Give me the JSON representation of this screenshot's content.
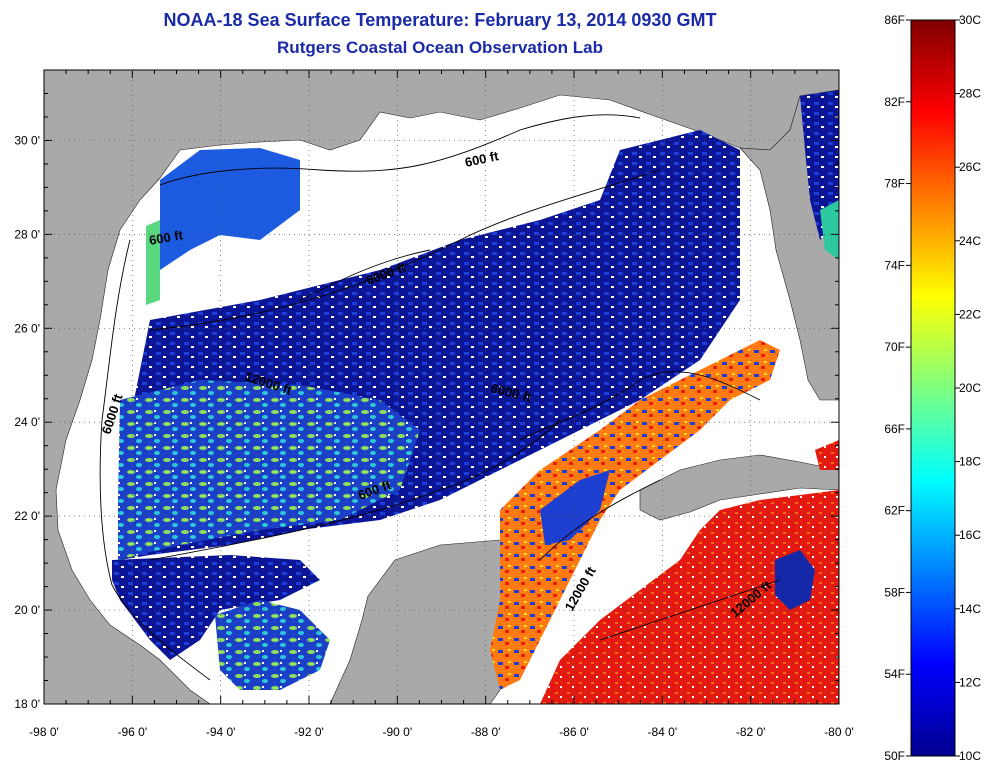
{
  "title": "NOAA-18 Sea Surface Temperature:  February 13, 2014 0930 GMT",
  "subtitle": "Rutgers Coastal Ocean Observation Lab",
  "lat_labels": [
    "30 0'",
    "28 0'",
    "26 0'",
    "24 0'",
    "22 0'",
    "20 0'",
    "18 0'"
  ],
  "lon_labels": [
    "-98 0'",
    "-96 0'",
    "-94 0'",
    "-92 0'",
    "-90 0'",
    "-88 0'",
    "-86 0'",
    "-84 0'",
    "-82 0'",
    "-80 0'"
  ],
  "contour_labels": [
    "600 ft",
    "600 ft",
    "6000 ft",
    "6000 ft",
    "12000 ft",
    "6000 ft",
    "600 ft",
    "12000 ft",
    "12000 ft"
  ],
  "colorbar": {
    "fahrenheit_labels": [
      "86F",
      "82F",
      "78F",
      "74F",
      "70F",
      "66F",
      "62F",
      "58F",
      "54F",
      "50F"
    ],
    "celsius_labels": [
      "30C",
      "28C",
      "26C",
      "24C",
      "22C",
      "20C",
      "18C",
      "16C",
      "14C",
      "12C",
      "10C"
    ],
    "range_c": [
      10,
      30
    ],
    "range_f": [
      50,
      86
    ]
  },
  "colors": {
    "land": "#a9a9a9",
    "water_no_data": "#ffffff",
    "title": "#1a2aa8",
    "cold": "#0a0a8c",
    "warm": "#e01010"
  },
  "map_extent": {
    "lon": [
      -98,
      -80
    ],
    "lat": [
      18,
      31.5
    ]
  }
}
